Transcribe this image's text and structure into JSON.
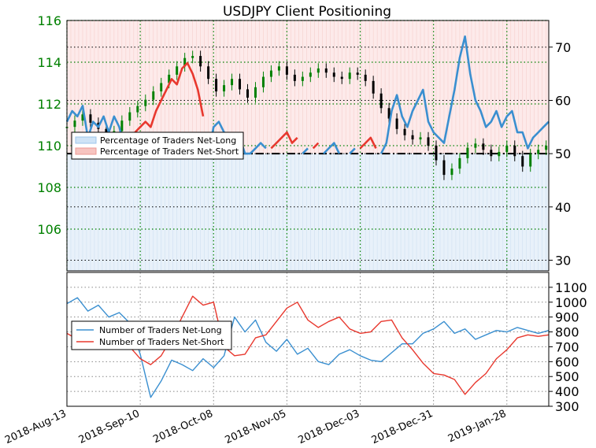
{
  "chart_data": {
    "title": "USDJPY Client Positioning",
    "x_tick_labels": [
      "2018-Aug-13",
      "2018-Sep-10",
      "2018-Oct-08",
      "2018-Nov-05",
      "2018-Dec-03",
      "2018-Dec-31",
      "2019-Jan-28"
    ],
    "grid": true,
    "colors": {
      "long": "#3a8fd0",
      "short": "#e8382e",
      "price_up": "#008000",
      "price_down": "#000000",
      "tick_left": "#008000"
    },
    "panels": [
      {
        "type": "area_line_candlestick",
        "left_axis": {
          "label": "",
          "range": [
            104,
            116
          ],
          "ticks": [
            "106",
            "108",
            "110",
            "112",
            "114",
            "116"
          ]
        },
        "right_axis": {
          "label": "",
          "range": [
            28,
            75
          ],
          "ticks": [
            "30",
            "40",
            "50",
            "60",
            "70"
          ]
        },
        "reference_line": 50,
        "legend": {
          "position": "left",
          "entries": [
            "Percentage of Traders Net-Long",
            "Percentage of Traders Net-Short"
          ]
        },
        "series": [
          {
            "name": "Percentage of Traders Net-Long",
            "axis": "right",
            "x": [
              0,
              2,
              4,
              6,
              8,
              10,
              12,
              14,
              16,
              18,
              20,
              22,
              24,
              26,
              28,
              30,
              32,
              34,
              36,
              38,
              40,
              42,
              44,
              46,
              48,
              50,
              52,
              54,
              56,
              58,
              60,
              62,
              64,
              66,
              68,
              70,
              72,
              74,
              76,
              78,
              80,
              82,
              84,
              86,
              88,
              90,
              92,
              94,
              96,
              98,
              100,
              102,
              104,
              106,
              108,
              110,
              112,
              114,
              116,
              118,
              120,
              122,
              124,
              126,
              128,
              130,
              132,
              134,
              136,
              138,
              140,
              142,
              144,
              146,
              148,
              150,
              152,
              154,
              156,
              158,
              160,
              162,
              164,
              166,
              168,
              170,
              172,
              174,
              176,
              178,
              180,
              182,
              184
            ],
            "values": [
              56,
              58,
              57,
              59,
              53,
              56,
              55,
              57,
              54,
              57,
              55,
              51,
              50,
              46,
              45,
              44,
              45,
              42,
              40,
              38,
              36,
              37,
              34,
              33,
              35,
              38,
              43,
              50,
              55,
              56,
              54,
              52,
              50,
              53,
              50,
              50,
              51,
              52,
              51,
              49,
              48,
              47,
              46,
              48,
              47,
              50,
              51,
              49,
              48,
              50,
              51,
              52,
              50,
              49,
              50,
              51,
              49,
              48,
              47,
              49,
              50,
              52,
              58,
              61,
              57,
              55,
              58,
              60,
              62,
              56,
              54,
              53,
              52,
              57,
              62,
              68,
              72,
              65,
              60,
              58,
              55,
              56,
              58,
              55,
              57,
              58,
              54,
              54,
              51,
              53,
              54,
              55,
              56
            ]
          },
          {
            "name": "Percentage of Traders Net-Short",
            "axis": "right",
            "x": [
              0,
              2,
              4,
              6,
              8,
              10,
              12,
              14,
              16,
              18,
              20,
              22,
              24,
              26,
              28,
              30,
              32,
              34,
              36,
              38,
              40,
              42,
              44,
              46,
              48,
              50,
              52,
              54,
              56,
              58,
              60,
              62,
              64,
              66,
              68,
              70,
              72,
              74,
              76,
              78,
              80,
              82,
              84,
              86,
              88,
              90,
              92,
              94,
              96,
              98,
              100,
              102,
              104,
              106,
              108,
              110,
              112,
              114,
              116,
              118,
              120,
              122,
              124,
              126,
              128,
              130,
              132,
              134,
              136,
              138,
              140,
              142,
              144,
              146,
              148,
              150,
              152,
              154,
              156,
              158,
              160,
              162,
              164,
              166,
              168,
              170,
              172,
              174,
              176,
              178,
              180,
              182,
              184
            ],
            "values": [
              44,
              42,
              43,
              41,
              47,
              44,
              45,
              43,
              46,
              43,
              45,
              49,
              50,
              54,
              55,
              56,
              55,
              58,
              60,
              62,
              64,
              63,
              66,
              67,
              65,
              62,
              57,
              50,
              45,
              44,
              46,
              48,
              50,
              47,
              50,
              50,
              49,
              48,
              49,
              51,
              52,
              53,
              54,
              52,
              53,
              50,
              49,
              51,
              52,
              50,
              49,
              48,
              50,
              51,
              50,
              49,
              51,
              52,
              53,
              51,
              50,
              48,
              42,
              39,
              43,
              45,
              42,
              40,
              38,
              44,
              46,
              47,
              48,
              43,
              38,
              32,
              28,
              35,
              40,
              42,
              45,
              44,
              42,
              45,
              43,
              42,
              46,
              46,
              49,
              47,
              46,
              45,
              44
            ]
          },
          {
            "name": "",
            "type": "candlestick",
            "axis": "left",
            "x": [
              0,
              3,
              6,
              9,
              12,
              15,
              18,
              21,
              24,
              27,
              30,
              33,
              36,
              39,
              42,
              45,
              48,
              51,
              54,
              57,
              60,
              63,
              66,
              69,
              72,
              75,
              78,
              81,
              84,
              87,
              90,
              93,
              96,
              99,
              102,
              105,
              108,
              111,
              114,
              117,
              120,
              123,
              126,
              129,
              132,
              135,
              138,
              141,
              144,
              147,
              150,
              153,
              156,
              159,
              162,
              165,
              168,
              171,
              174,
              177,
              180,
              183
            ],
            "values": [
              110.9,
              111.2,
              111.5,
              111.1,
              110.8,
              110.5,
              110.7,
              111.2,
              111.6,
              111.9,
              112.2,
              112.6,
              113.0,
              113.4,
              113.8,
              114.2,
              114.3,
              113.8,
              113.2,
              112.6,
              112.9,
              113.2,
              112.7,
              112.3,
              112.8,
              113.3,
              113.6,
              113.8,
              113.4,
              113.1,
              113.3,
              113.5,
              113.7,
              113.5,
              113.3,
              113.2,
              113.5,
              113.4,
              113.1,
              112.5,
              111.8,
              111.3,
              110.8,
              110.5,
              110.3,
              110.4,
              110.0,
              109.3,
              108.6,
              108.9,
              109.4,
              109.9,
              110.1,
              109.8,
              109.5,
              109.7,
              110.0,
              109.5,
              109.0,
              109.6,
              109.8,
              110.0
            ]
          }
        ]
      },
      {
        "type": "line",
        "axis_side": "right",
        "range": [
          300,
          1200
        ],
        "ticks": [
          "300",
          "400",
          "500",
          "600",
          "700",
          "800",
          "900",
          "1000",
          "1100"
        ],
        "legend": {
          "position": "left",
          "entries": [
            "Number of Traders Net-Long",
            "Number of Traders Net-Short"
          ]
        },
        "series": [
          {
            "name": "Number of Traders Net-Long",
            "x": [
              0,
              4,
              8,
              12,
              16,
              20,
              24,
              28,
              32,
              36,
              40,
              44,
              48,
              52,
              56,
              60,
              64,
              68,
              72,
              76,
              80,
              84,
              88,
              92,
              96,
              100,
              104,
              108,
              112,
              116,
              120,
              124,
              128,
              132,
              136,
              140,
              144,
              148,
              152,
              156,
              160,
              164,
              168,
              172,
              176,
              180,
              184
            ],
            "values": [
              990,
              1030,
              940,
              980,
              900,
              930,
              860,
              650,
              360,
              470,
              610,
              580,
              540,
              620,
              560,
              640,
              900,
              800,
              880,
              730,
              670,
              750,
              650,
              690,
              600,
              580,
              650,
              680,
              640,
              610,
              600,
              660,
              720,
              720,
              790,
              820,
              870,
              790,
              820,
              750,
              780,
              810,
              800,
              830,
              810,
              790,
              810
            ]
          },
          {
            "name": "Number of Traders Net-Short",
            "x": [
              0,
              4,
              8,
              12,
              16,
              20,
              24,
              28,
              32,
              36,
              40,
              44,
              48,
              52,
              56,
              60,
              64,
              68,
              72,
              76,
              80,
              84,
              88,
              92,
              96,
              100,
              104,
              108,
              112,
              116,
              120,
              124,
              128,
              132,
              136,
              140,
              144,
              148,
              152,
              156,
              160,
              164,
              168,
              172,
              176,
              180,
              184
            ],
            "values": [
              790,
              750,
              770,
              760,
              760,
              740,
              700,
              620,
              580,
              640,
              760,
              900,
              1040,
              980,
              1000,
              700,
              640,
              650,
              760,
              780,
              870,
              960,
              1000,
              880,
              830,
              870,
              900,
              820,
              790,
              800,
              870,
              880,
              760,
              680,
              590,
              520,
              510,
              480,
              380,
              460,
              520,
              620,
              680,
              760,
              780,
              770,
              780
            ]
          }
        ]
      }
    ]
  }
}
